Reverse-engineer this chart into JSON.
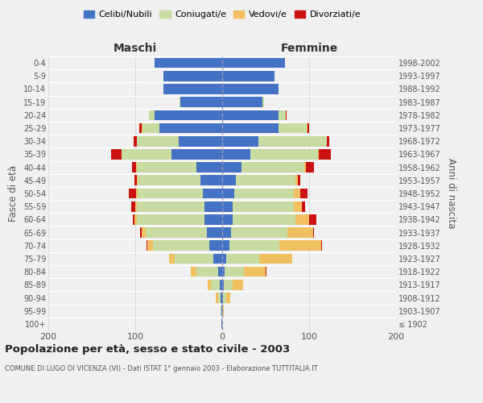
{
  "age_groups": [
    "100+",
    "95-99",
    "90-94",
    "85-89",
    "80-84",
    "75-79",
    "70-74",
    "65-69",
    "60-64",
    "55-59",
    "50-54",
    "45-49",
    "40-44",
    "35-39",
    "30-34",
    "25-29",
    "20-24",
    "15-19",
    "10-14",
    "5-9",
    "0-4"
  ],
  "birth_years": [
    "≤ 1902",
    "1903-1907",
    "1908-1912",
    "1913-1917",
    "1918-1922",
    "1923-1927",
    "1928-1932",
    "1933-1937",
    "1938-1942",
    "1943-1947",
    "1948-1952",
    "1953-1957",
    "1958-1962",
    "1963-1967",
    "1968-1972",
    "1973-1977",
    "1978-1982",
    "1983-1987",
    "1988-1992",
    "1993-1997",
    "1998-2002"
  ],
  "maschi": {
    "celibi": [
      1,
      1,
      2,
      3,
      5,
      10,
      15,
      18,
      20,
      20,
      22,
      25,
      30,
      58,
      50,
      72,
      78,
      48,
      68,
      68,
      78
    ],
    "coniugati": [
      0,
      1,
      3,
      10,
      25,
      45,
      65,
      70,
      78,
      78,
      75,
      72,
      68,
      58,
      48,
      20,
      6,
      1,
      0,
      0,
      0
    ],
    "vedovi": [
      0,
      0,
      2,
      4,
      6,
      6,
      6,
      5,
      3,
      2,
      2,
      1,
      1,
      0,
      0,
      1,
      0,
      0,
      0,
      0,
      0
    ],
    "divorziati": [
      0,
      0,
      0,
      0,
      0,
      0,
      1,
      1,
      2,
      5,
      8,
      3,
      5,
      12,
      4,
      2,
      0,
      0,
      0,
      0,
      0
    ]
  },
  "femmine": {
    "nubili": [
      0,
      0,
      1,
      2,
      3,
      5,
      8,
      10,
      12,
      12,
      14,
      16,
      22,
      32,
      42,
      65,
      65,
      46,
      65,
      60,
      72
    ],
    "coniugate": [
      0,
      1,
      4,
      10,
      22,
      38,
      58,
      65,
      72,
      70,
      68,
      68,
      72,
      78,
      78,
      32,
      8,
      2,
      0,
      0,
      0
    ],
    "vedove": [
      0,
      1,
      4,
      12,
      25,
      38,
      48,
      30,
      16,
      10,
      8,
      3,
      2,
      1,
      0,
      1,
      0,
      0,
      0,
      0,
      0
    ],
    "divorziate": [
      0,
      0,
      0,
      0,
      1,
      0,
      1,
      1,
      8,
      3,
      8,
      3,
      10,
      14,
      3,
      2,
      1,
      0,
      0,
      0,
      0
    ]
  },
  "colors": {
    "celibi": "#4472c4",
    "coniugati": "#c8dba0",
    "vedovi": "#f0c060",
    "divorziati": "#cc1111"
  },
  "xlim": 200,
  "title": "Popolazione per età, sesso e stato civile - 2003",
  "subtitle": "COMUNE DI LUGO DI VICENZA (VI) - Dati ISTAT 1° gennaio 2003 - Elaborazione TUTTITALIA.IT",
  "ylabel_left": "Fasce di età",
  "ylabel_right": "Anni di nascita",
  "xlabel_maschi": "Maschi",
  "xlabel_femmine": "Femmine",
  "legend_labels": [
    "Celibi/Nubili",
    "Coniugati/e",
    "Vedovi/e",
    "Divorziati/e"
  ],
  "bg_color": "#f0f0f0"
}
